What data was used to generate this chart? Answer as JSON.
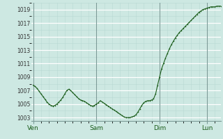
{
  "background_color": "#cde8e2",
  "plot_bg_color": "#cde8e2",
  "line_color": "#1a5c1a",
  "marker_color": "#1a5c1a",
  "grid_major_color": "#ffffff",
  "grid_minor_color": "#b8d8d2",
  "vline_color": "#7a9a96",
  "spine_color": "#7a9a96",
  "tick_label_color": "#1a5c1a",
  "ylim": [
    1002.5,
    1020.0
  ],
  "yticks": [
    1003,
    1005,
    1007,
    1009,
    1011,
    1013,
    1015,
    1017,
    1019
  ],
  "xtick_labels": [
    "Ven",
    "Sam",
    "Dim",
    "Lun"
  ],
  "xtick_positions": [
    0,
    32,
    64,
    88
  ],
  "total_points": 96,
  "vline_positions": [
    0,
    32,
    64,
    88
  ],
  "pressure_data": [
    1007.8,
    1007.6,
    1007.3,
    1006.9,
    1006.5,
    1006.1,
    1005.7,
    1005.3,
    1005.0,
    1004.8,
    1004.7,
    1004.8,
    1005.0,
    1005.3,
    1005.6,
    1006.0,
    1006.5,
    1007.0,
    1007.2,
    1007.0,
    1006.7,
    1006.4,
    1006.1,
    1005.8,
    1005.6,
    1005.5,
    1005.4,
    1005.2,
    1005.0,
    1004.8,
    1004.7,
    1004.8,
    1005.0,
    1005.2,
    1005.5,
    1005.3,
    1005.1,
    1004.9,
    1004.7,
    1004.5,
    1004.3,
    1004.1,
    1003.9,
    1003.7,
    1003.5,
    1003.3,
    1003.1,
    1003.0,
    1003.0,
    1003.0,
    1003.1,
    1003.2,
    1003.4,
    1003.8,
    1004.3,
    1004.8,
    1005.2,
    1005.4,
    1005.5,
    1005.5,
    1005.6,
    1005.8,
    1006.5,
    1007.8,
    1009.0,
    1010.2,
    1011.0,
    1011.8,
    1012.5,
    1013.2,
    1013.8,
    1014.3,
    1014.8,
    1015.2,
    1015.6,
    1015.9,
    1016.2,
    1016.5,
    1016.8,
    1017.1,
    1017.4,
    1017.7,
    1018.0,
    1018.3,
    1018.6,
    1018.8,
    1019.0,
    1019.1,
    1019.2,
    1019.3,
    1019.4,
    1019.4,
    1019.4,
    1019.5,
    1019.5,
    1019.5
  ]
}
